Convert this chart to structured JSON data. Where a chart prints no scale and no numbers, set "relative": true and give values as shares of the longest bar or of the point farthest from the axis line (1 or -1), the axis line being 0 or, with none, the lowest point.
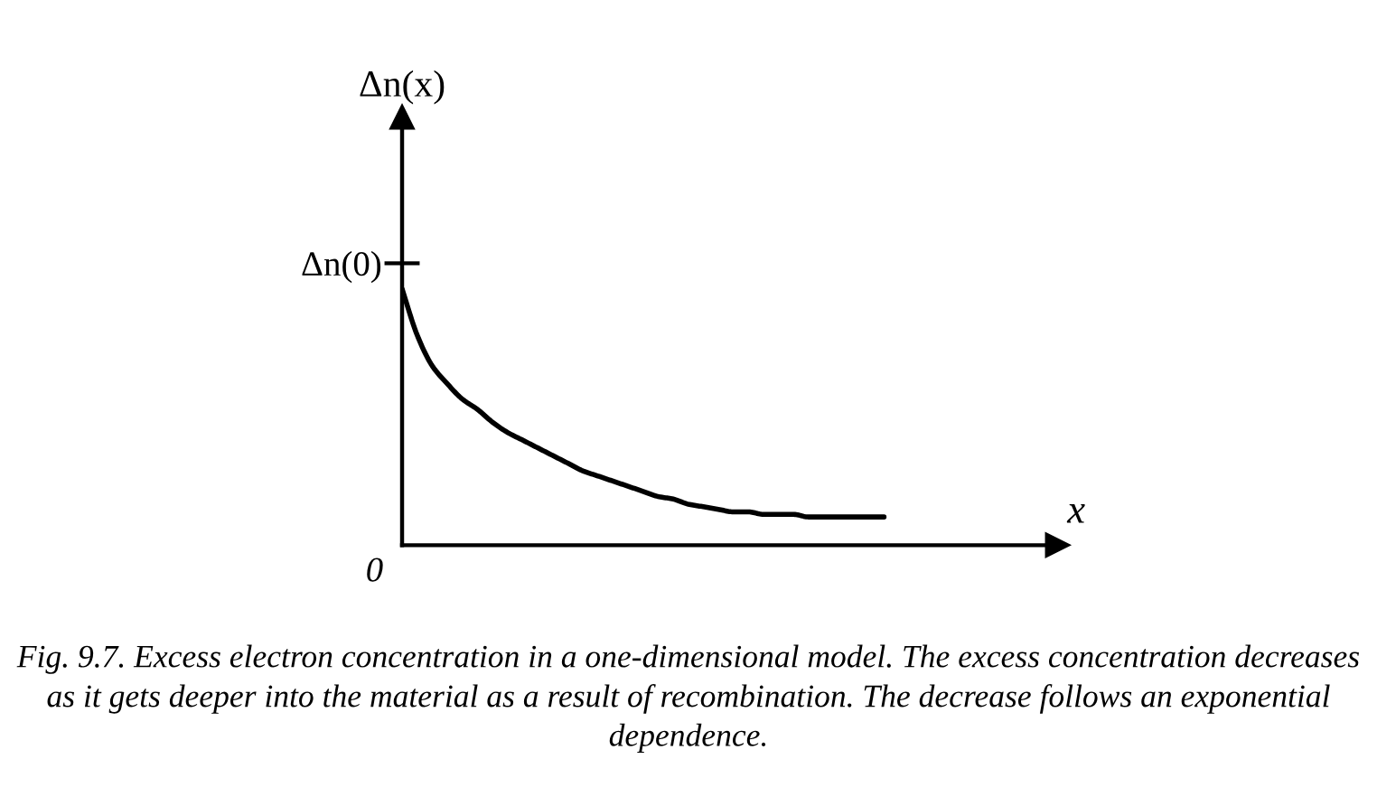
{
  "chart_data": {
    "type": "line",
    "relative": true,
    "ylabel": "Δn(x)",
    "xlabel": "x",
    "categories": [
      null,
      null,
      null,
      null,
      null,
      null,
      null,
      null,
      null,
      null,
      null,
      null,
      null,
      null,
      null,
      null,
      null,
      null,
      null,
      null,
      null,
      null,
      null,
      null,
      null,
      null,
      null,
      null,
      null,
      null,
      null,
      null,
      null
    ],
    "series": [
      {
        "color": "#000000",
        "values": [
          1.0,
          0.82,
          0.7,
          0.63,
          0.57,
          0.53,
          0.48,
          0.44,
          0.41,
          0.38,
          0.35,
          0.32,
          0.29,
          0.27,
          0.25,
          0.23,
          0.21,
          0.19,
          0.18,
          0.16,
          0.15,
          0.14,
          0.13,
          0.13,
          0.12,
          0.12,
          0.12,
          0.11,
          0.11,
          0.11,
          0.11,
          0.11,
          0.11
        ]
      }
    ],
    "tick_labels": "y",
    "grid": false,
    "annotations": [
      "Δn(0)",
      "0",
      "Fig. 9.7. Excess electron concentration in a one-dimensional model. The excess concentration decreases as it gets deeper into the material as a result of recombination. The decrease follows an exponential dependence."
    ]
  }
}
